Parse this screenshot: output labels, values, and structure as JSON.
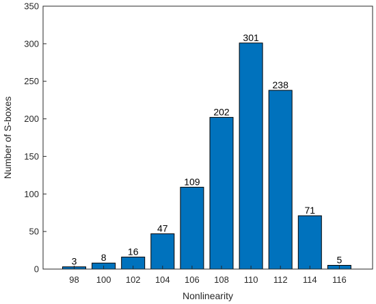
{
  "chart_data": {
    "type": "bar",
    "categories": [
      "98",
      "100",
      "102",
      "104",
      "106",
      "108",
      "110",
      "112",
      "114",
      "116"
    ],
    "values": [
      3,
      8,
      16,
      47,
      109,
      202,
      301,
      238,
      71,
      5
    ],
    "data_labels": [
      "3",
      "8",
      "16",
      "47",
      "109",
      "202",
      "301",
      "238",
      "71",
      "5"
    ],
    "xlabel": "Nonlinearity",
    "ylabel": "Number of S-boxes",
    "ylim": [
      0,
      350
    ],
    "yticks": [
      0,
      50,
      100,
      150,
      200,
      250,
      300,
      350
    ],
    "grid": false,
    "legend": "none",
    "colors": {
      "bar_fill": "#0072BD",
      "bar_edge": "#000000",
      "axis": "#262626"
    }
  }
}
